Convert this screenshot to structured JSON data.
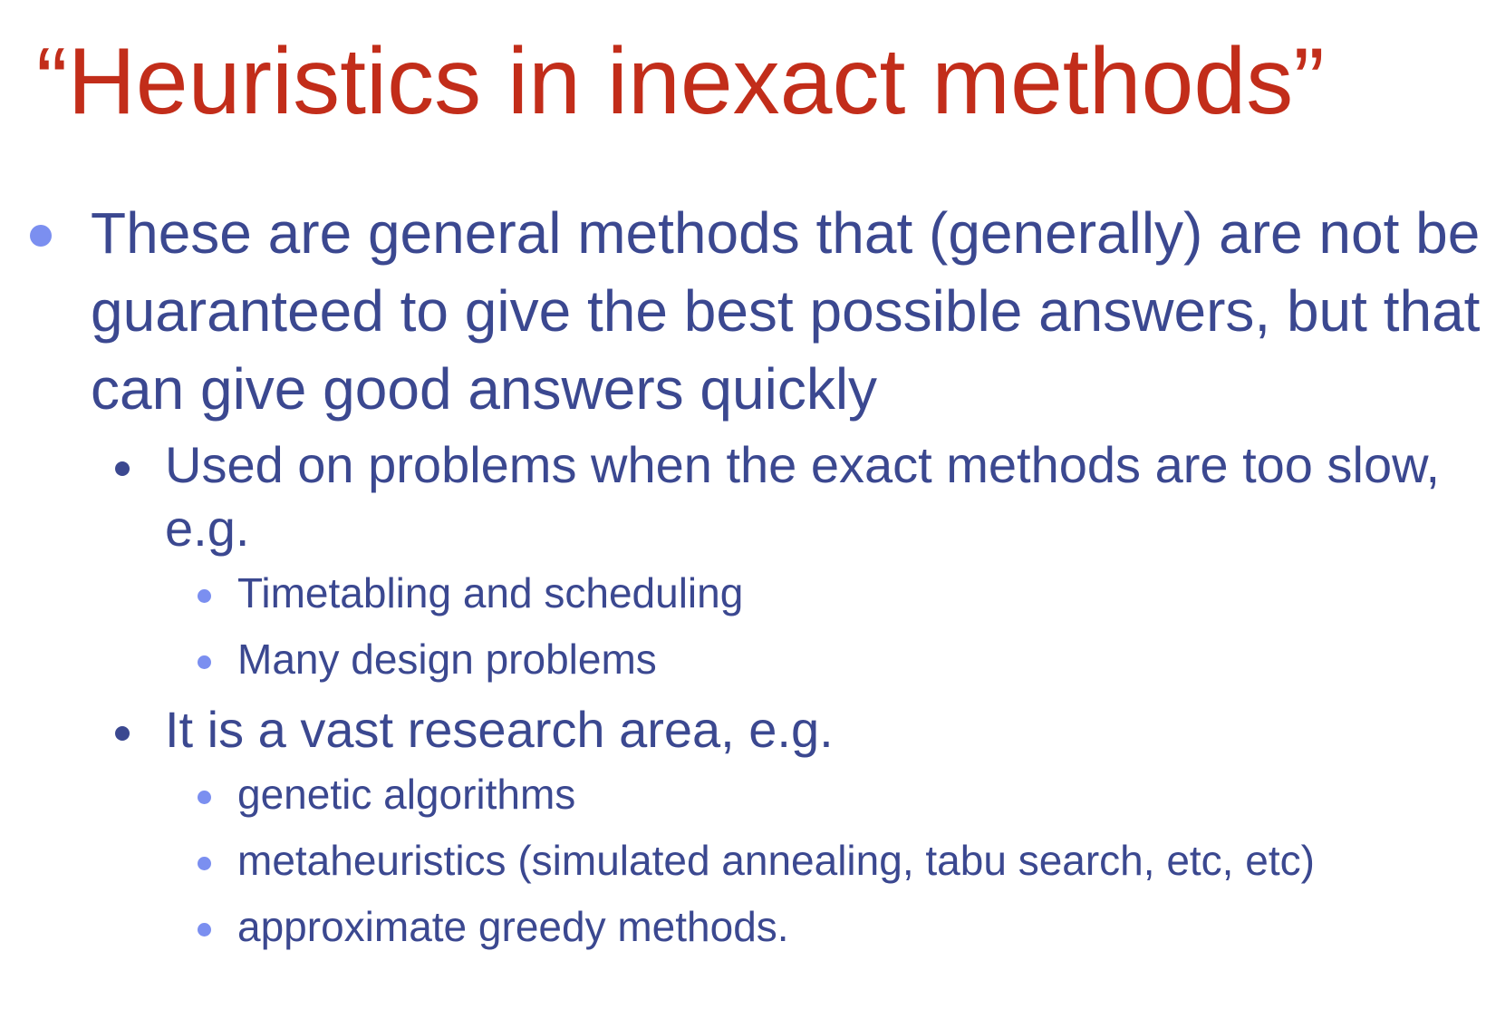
{
  "title": "“Heuristics in inexact methods”",
  "bullets": [
    {
      "text": "These are general methods that (generally) are not be guaranteed to give the best possible answers, but that can give good answers quickly",
      "children": [
        {
          "text": "Used on problems when the exact methods are too slow, e.g.",
          "children": [
            {
              "text": "Timetabling and scheduling"
            },
            {
              "text": "Many design problems"
            }
          ]
        },
        {
          "text": "It is a vast research area, e.g.",
          "children": [
            {
              "text": "genetic algorithms"
            },
            {
              "text": "metaheuristics (simulated annealing, tabu search, etc, etc)"
            },
            {
              "text": "approximate greedy methods."
            }
          ]
        }
      ]
    }
  ]
}
